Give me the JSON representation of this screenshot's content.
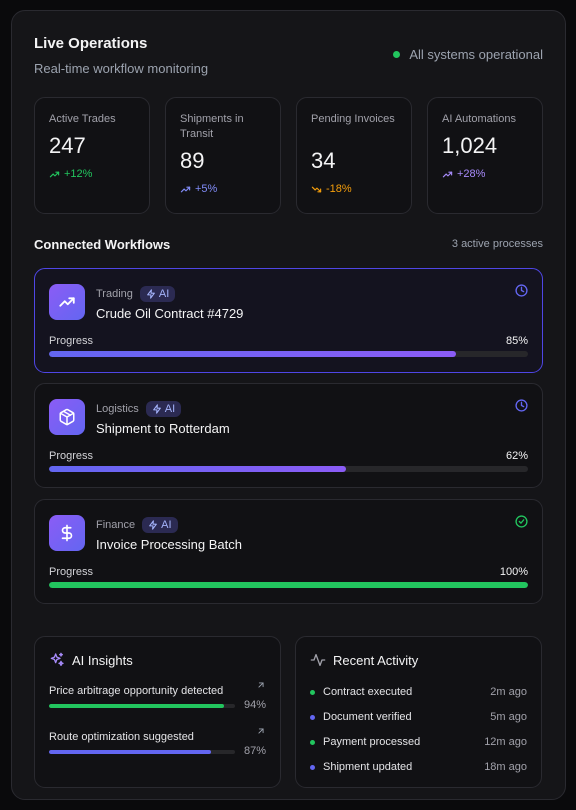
{
  "header": {
    "title": "Live Operations",
    "subtitle": "Real-time workflow monitoring",
    "status": "All systems operational"
  },
  "stats": [
    {
      "label": "Active Trades",
      "value": "247",
      "trend": "+12%",
      "trend_color": "#22c55e"
    },
    {
      "label": "Shipments in Transit",
      "value": "89",
      "trend": "+5%",
      "trend_color": "#818cf8"
    },
    {
      "label": "Pending Invoices",
      "value": "34",
      "trend": "-18%",
      "trend_color": "#f59e0b"
    },
    {
      "label": "AI Automations",
      "value": "1,024",
      "trend": "+28%",
      "trend_color": "#a78bfa"
    }
  ],
  "workflows_section": {
    "title": "Connected Workflows",
    "meta": "3 active processes"
  },
  "workflows": [
    {
      "category": "Trading",
      "badge": "AI",
      "name": "Crude Oil Contract #4729",
      "progress_label": "Progress",
      "progress": "85%",
      "progress_value": 0.85,
      "icon": "trending-up-icon",
      "status_icon": "clock-icon",
      "status_color": "#6366f1",
      "fill": "linear-gradient(90deg,#6366f1,#8b5cf6)"
    },
    {
      "category": "Logistics",
      "badge": "AI",
      "name": "Shipment to Rotterdam",
      "progress_label": "Progress",
      "progress": "62%",
      "progress_value": 0.62,
      "icon": "package-icon",
      "status_icon": "clock-icon",
      "status_color": "#6366f1",
      "fill": "linear-gradient(90deg,#6366f1,#8b5cf6)"
    },
    {
      "category": "Finance",
      "badge": "AI",
      "name": "Invoice Processing Batch",
      "progress_label": "Progress",
      "progress": "100%",
      "progress_value": 1.0,
      "icon": "dollar-icon",
      "status_icon": "check-circle-icon",
      "status_color": "#22c55e",
      "fill": "#22c55e"
    }
  ],
  "insights": {
    "title": "AI Insights",
    "items": [
      {
        "text": "Price arbitrage opportunity detected",
        "value": "94%",
        "progress_value": 0.94,
        "color": "#22c55e"
      },
      {
        "text": "Route optimization suggested",
        "value": "87%",
        "progress_value": 0.87,
        "color": "#6366f1"
      }
    ]
  },
  "activity": {
    "title": "Recent Activity",
    "items": [
      {
        "text": "Contract executed",
        "time": "2m ago",
        "color": "#22c55e"
      },
      {
        "text": "Document verified",
        "time": "5m ago",
        "color": "#6366f1"
      },
      {
        "text": "Payment processed",
        "time": "12m ago",
        "color": "#22c55e"
      },
      {
        "text": "Shipment updated",
        "time": "18m ago",
        "color": "#6366f1"
      }
    ]
  }
}
